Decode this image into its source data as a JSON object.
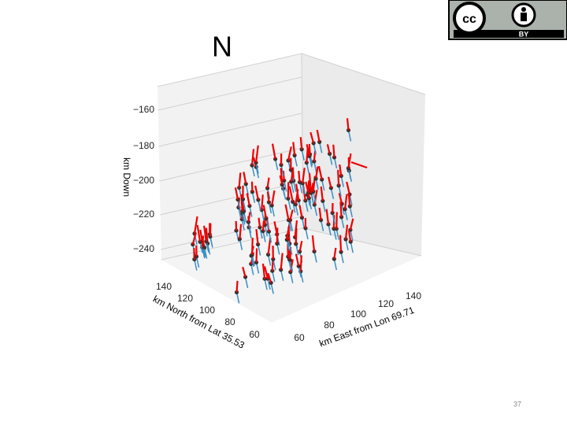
{
  "slide": {
    "title": "N",
    "page_number": "37",
    "badge": {
      "label": "BY"
    },
    "plot": {
      "z_label": "km Down",
      "z_ticks": [
        "−160",
        "−180",
        "−200",
        "−220",
        "−240"
      ],
      "north_label": "km North from Lat 35.53",
      "north_ticks": [
        "140",
        "120",
        "100",
        "80",
        "60"
      ],
      "east_label": "km East from Lon 69.71",
      "east_ticks": [
        "60",
        "80",
        "100",
        "120",
        "140"
      ]
    }
  }
}
